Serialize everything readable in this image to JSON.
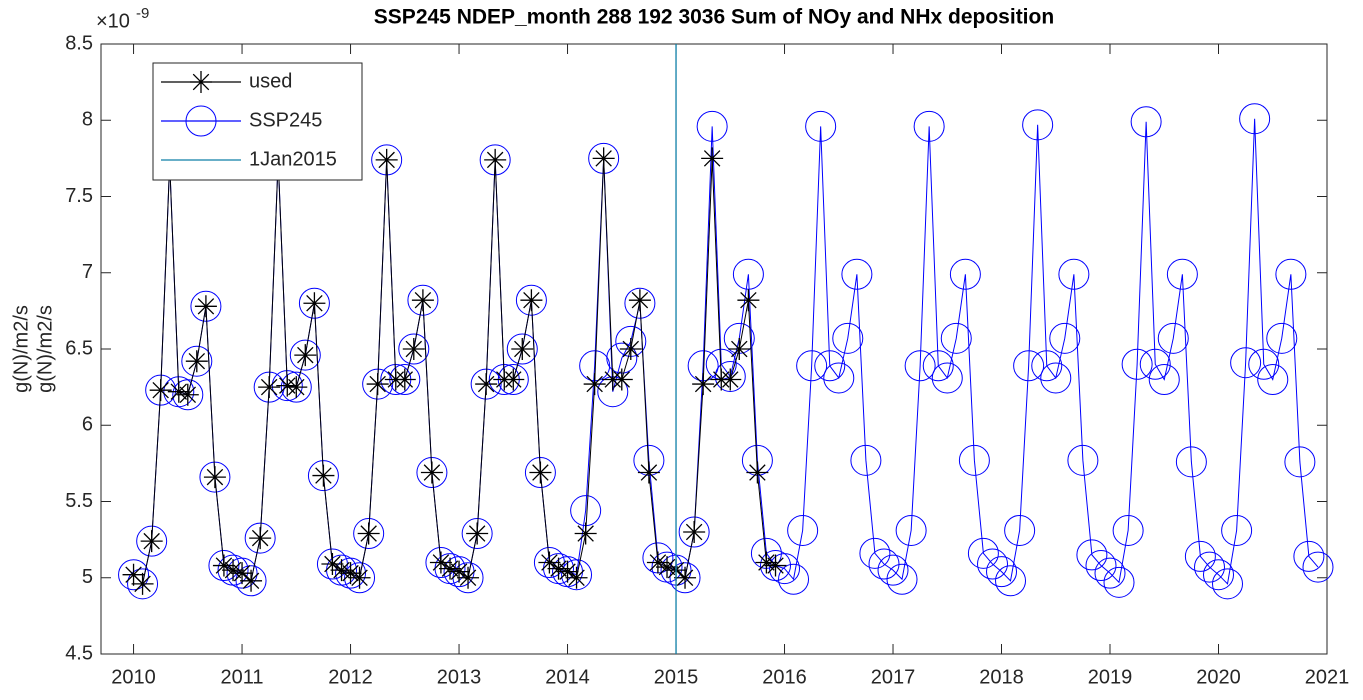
{
  "chart_data": {
    "type": "line",
    "title": "SSP245 NDEP_month  288 192 3036   Sum of NOy and NHx deposition",
    "ylabel": [
      "g(N)/m2/s",
      "g(N)/m2/s"
    ],
    "y_exponent_base": "×10",
    "y_exponent": "-9",
    "xlim": [
      2009.7,
      2021
    ],
    "xticks": [
      2010,
      2011,
      2012,
      2013,
      2014,
      2015,
      2016,
      2017,
      2018,
      2019,
      2020,
      2021
    ],
    "ylim": [
      4.5,
      8.5
    ],
    "yticks": [
      4.5,
      5,
      5.5,
      6,
      6.5,
      7,
      7.5,
      8,
      8.5
    ],
    "legend": "upper left",
    "x": [
      2010,
      2010.083,
      2010.167,
      2010.25,
      2010.333,
      2010.417,
      2010.5,
      2010.583,
      2010.667,
      2010.75,
      2010.833,
      2010.917,
      2011,
      2011.083,
      2011.167,
      2011.25,
      2011.333,
      2011.417,
      2011.5,
      2011.583,
      2011.667,
      2011.75,
      2011.833,
      2011.917,
      2012,
      2012.083,
      2012.167,
      2012.25,
      2012.333,
      2012.417,
      2012.5,
      2012.583,
      2012.667,
      2012.75,
      2012.833,
      2012.917,
      2013,
      2013.083,
      2013.167,
      2013.25,
      2013.333,
      2013.417,
      2013.5,
      2013.583,
      2013.667,
      2013.75,
      2013.833,
      2013.917,
      2014,
      2014.083,
      2014.167,
      2014.25,
      2014.333,
      2014.417,
      2014.5,
      2014.583,
      2014.667,
      2014.75,
      2014.833,
      2014.917,
      2015,
      2015.083,
      2015.167,
      2015.25,
      2015.333,
      2015.417,
      2015.5,
      2015.583,
      2015.667,
      2015.75,
      2015.833,
      2015.917,
      2016,
      2016.083,
      2016.167,
      2016.25,
      2016.333,
      2016.417,
      2016.5,
      2016.583,
      2016.667,
      2016.75,
      2016.833,
      2016.917,
      2017,
      2017.083,
      2017.167,
      2017.25,
      2017.333,
      2017.417,
      2017.5,
      2017.583,
      2017.667,
      2017.75,
      2017.833,
      2017.917,
      2018,
      2018.083,
      2018.167,
      2018.25,
      2018.333,
      2018.417,
      2018.5,
      2018.583,
      2018.667,
      2018.75,
      2018.833,
      2018.917,
      2019,
      2019.083,
      2019.167,
      2019.25,
      2019.333,
      2019.417,
      2019.5,
      2019.583,
      2019.667,
      2019.75,
      2019.833,
      2019.917,
      2020,
      2020.083,
      2020.167,
      2020.25,
      2020.333,
      2020.417,
      2020.5,
      2020.583,
      2020.667,
      2020.75,
      2020.833,
      2020.917
    ],
    "series": [
      {
        "name": "used",
        "color": "#000000",
        "marker": "asterisk",
        "values": [
          5.02,
          4.96,
          5.24,
          6.23,
          7.72,
          6.22,
          6.2,
          6.42,
          6.78,
          5.66,
          5.08,
          5.05,
          5.03,
          4.98,
          5.26,
          6.25,
          7.74,
          6.26,
          6.25,
          6.46,
          6.8,
          5.67,
          5.09,
          5.05,
          5.03,
          5.0,
          5.29,
          6.27,
          7.74,
          6.3,
          6.3,
          6.5,
          6.82,
          5.69,
          5.1,
          5.06,
          5.04,
          5.0,
          5.29,
          6.27,
          7.74,
          6.3,
          6.3,
          6.5,
          6.82,
          5.69,
          5.1,
          5.06,
          5.04,
          5.0,
          5.29,
          6.27,
          7.75,
          6.3,
          6.3,
          6.5,
          6.82,
          5.69,
          5.1,
          5.07,
          5.05,
          5.0,
          5.3,
          6.27,
          7.75,
          6.3,
          6.3,
          6.5,
          6.82,
          5.69,
          5.1,
          5.08,
          null,
          null,
          null,
          null,
          null,
          null,
          null,
          null,
          null,
          null,
          null,
          null,
          null,
          null,
          null,
          null,
          null,
          null,
          null,
          null,
          null,
          null,
          null,
          null,
          null,
          null,
          null,
          null,
          null,
          null,
          null,
          null,
          null,
          null,
          null,
          null,
          null,
          null,
          null,
          null,
          null,
          null,
          null,
          null,
          null,
          null,
          null,
          null,
          null,
          null,
          null,
          null,
          null,
          null,
          null,
          null,
          null,
          null,
          null,
          null
        ]
      },
      {
        "name": "SSP245",
        "color": "#0000ff",
        "marker": "circle",
        "values": [
          5.02,
          4.96,
          5.24,
          6.23,
          7.72,
          6.22,
          6.2,
          6.42,
          6.78,
          5.66,
          5.08,
          5.05,
          5.03,
          4.98,
          5.26,
          6.25,
          7.74,
          6.26,
          6.25,
          6.46,
          6.8,
          5.67,
          5.09,
          5.05,
          5.03,
          5.0,
          5.29,
          6.27,
          7.74,
          6.3,
          6.3,
          6.5,
          6.82,
          5.69,
          5.1,
          5.06,
          5.04,
          5.0,
          5.29,
          6.27,
          7.74,
          6.3,
          6.3,
          6.5,
          6.82,
          5.69,
          5.1,
          5.06,
          5.04,
          5.02,
          5.44,
          6.39,
          7.75,
          6.22,
          6.44,
          6.55,
          6.8,
          5.77,
          5.13,
          5.07,
          5.05,
          5.0,
          5.3,
          6.39,
          7.96,
          6.4,
          6.32,
          6.57,
          6.99,
          5.77,
          5.16,
          5.08,
          5.06,
          4.99,
          5.31,
          6.39,
          7.96,
          6.39,
          6.31,
          6.57,
          6.99,
          5.77,
          5.16,
          5.09,
          5.05,
          4.99,
          5.31,
          6.39,
          7.96,
          6.39,
          6.31,
          6.57,
          6.99,
          5.77,
          5.16,
          5.09,
          5.04,
          4.98,
          5.31,
          6.39,
          7.97,
          6.39,
          6.31,
          6.57,
          6.99,
          5.77,
          5.15,
          5.08,
          5.03,
          4.97,
          5.31,
          6.4,
          7.99,
          6.4,
          6.3,
          6.57,
          6.99,
          5.76,
          5.14,
          5.07,
          5.02,
          4.96,
          5.31,
          6.41,
          8.01,
          6.4,
          6.3,
          6.57,
          6.99,
          5.76,
          5.14,
          5.07
        ]
      }
    ],
    "vline": {
      "name": "1Jan2015",
      "x": 2015,
      "color": "#0e7fa8"
    }
  }
}
